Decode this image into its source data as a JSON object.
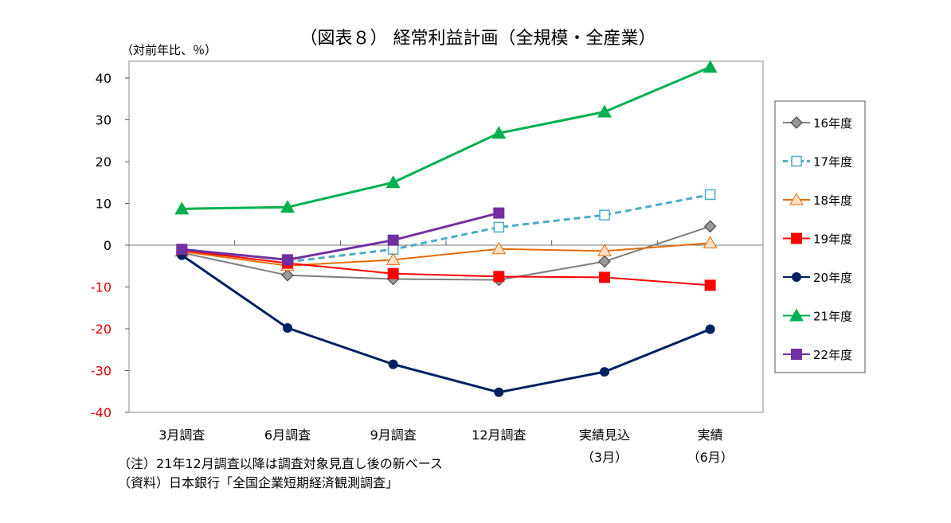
{
  "chart_data": {
    "type": "line",
    "title": "（図表８） 経常利益計画（全規模・全産業）",
    "ylabel": "（対前年比、％）",
    "ylim": [
      -40,
      44
    ],
    "yticks": [
      40,
      30,
      20,
      10,
      0,
      -10,
      -20,
      -30,
      -40
    ],
    "negative_tick_color": "#e00000",
    "categories": [
      "3月調査",
      "6月調査",
      "9月調査",
      "12月調査",
      "実績見込",
      "実績"
    ],
    "category_sublabels": [
      "",
      "",
      "",
      "",
      "（3月）",
      "（6月）"
    ],
    "legend_position": "right",
    "grid": false,
    "series": [
      {
        "name": "16年度",
        "color": "#7f7f7f",
        "marker": "diamond",
        "dash": false,
        "values": [
          -1.8,
          -7.2,
          -8.1,
          -8.3,
          -3.9,
          4.5
        ]
      },
      {
        "name": "17年度",
        "color": "#4bacc6",
        "marker": "square-open",
        "dash": true,
        "values": [
          null,
          -4.0,
          -1.0,
          4.3,
          7.2,
          12.1
        ]
      },
      {
        "name": "18年度",
        "color": "#e46c0a",
        "marker": "triangle-open",
        "dash": false,
        "values": [
          -1.5,
          -4.9,
          -3.5,
          -0.9,
          -1.4,
          0.5
        ]
      },
      {
        "name": "19年度",
        "color": "#ff0000",
        "marker": "square",
        "dash": false,
        "values": [
          -1.2,
          -4.3,
          -6.8,
          -7.5,
          -7.7,
          -9.6
        ]
      },
      {
        "name": "20年度",
        "color": "#002060",
        "marker": "circle",
        "dash": false,
        "values": [
          -2.4,
          -19.8,
          -28.5,
          -35.2,
          -30.3,
          -20.1
        ]
      },
      {
        "name": "21年度",
        "color": "#00b050",
        "marker": "triangle",
        "dash": false,
        "values": [
          8.7,
          9.1,
          15.0,
          26.8,
          31.9,
          42.6
        ]
      },
      {
        "name": "22年度",
        "color": "#7030a0",
        "marker": "square",
        "dash": false,
        "values": [
          -1.0,
          -3.5,
          1.2,
          7.7,
          null,
          null
        ]
      }
    ]
  },
  "notes": [
    "（注）21年12月調査以降は調査対象見直し後の新ベース",
    "（資料）日本銀行「全国企業短期経済観測調査」"
  ]
}
